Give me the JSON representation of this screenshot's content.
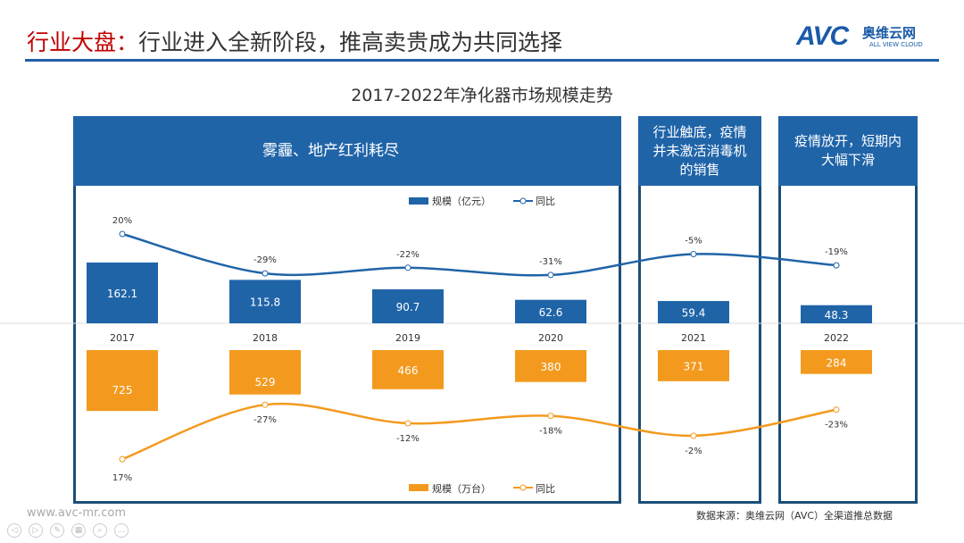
{
  "header": {
    "title_prefix": "行业大盘：",
    "title_main": "行业进入全新阶段，推高卖贵成为共同选择",
    "logo_text": "AVC",
    "logo_cn": "奥维云网",
    "logo_en": "ALL VIEW CLOUD"
  },
  "panels": [
    {
      "label": "雾霾、地产红利耗尽"
    },
    {
      "label": "行业触底，疫情并未激活消毒机的销售"
    },
    {
      "label": "疫情放开，短期内大幅下滑"
    }
  ],
  "chart_data": {
    "type": "bar+line",
    "title": "2017-2022年净化器市场规模走势",
    "categories": [
      "2017",
      "2018",
      "2019",
      "2020",
      "2021",
      "2022"
    ],
    "series": [
      {
        "name": "规模（亿元）",
        "type": "bar",
        "color": "#2064a8",
        "values": [
          162.1,
          115.8,
          90.7,
          62.6,
          59.4,
          48.3
        ],
        "labels": [
          "162.1",
          "115.8",
          "90.7",
          "62.6",
          "59.4",
          "48.3"
        ]
      },
      {
        "name": "同比",
        "type": "line",
        "color": "#2064a8",
        "values": [
          20,
          -29,
          -22,
          -31,
          -5,
          -19
        ],
        "labels": [
          "20%",
          "-29%",
          "-22%",
          "-31%",
          "-5%",
          "-19%"
        ]
      },
      {
        "name": "规模（万台）",
        "type": "bar",
        "color": "#f39a1e",
        "values": [
          725,
          529,
          466,
          380,
          371,
          284
        ],
        "labels": [
          "725",
          "529",
          "466",
          "380",
          "371",
          "284"
        ]
      },
      {
        "name": "同比",
        "type": "line",
        "color": "#f39a1e",
        "values": [
          17,
          -27,
          -12,
          -18,
          -2,
          -23
        ],
        "labels": [
          "17%",
          "-27%",
          "-12%",
          "-18%",
          "-2%",
          "-23%"
        ]
      }
    ],
    "legend_top": [
      "规模（亿元）",
      "同比"
    ],
    "legend_bottom": [
      "规模（万台）",
      "同比"
    ]
  },
  "footer": {
    "url": "www.avc-mr.com",
    "source": "数据来源：奥维云网（AVC）全渠道推总数据"
  }
}
